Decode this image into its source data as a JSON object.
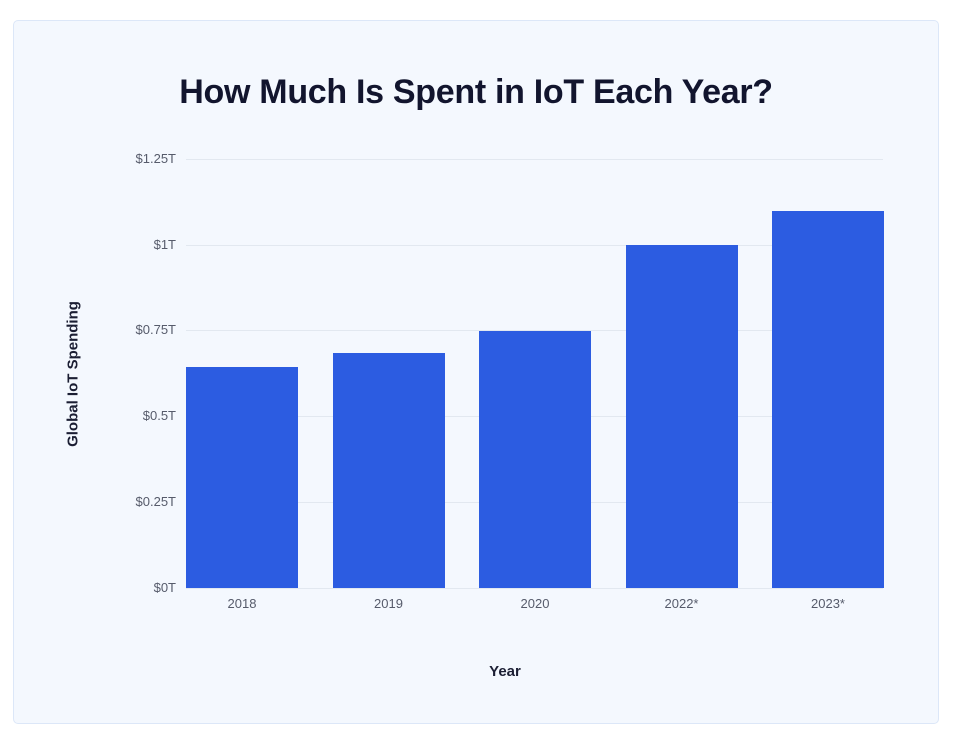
{
  "chart_data": {
    "type": "bar",
    "title": "How Much Is Spent in IoT Each Year?",
    "xlabel": "Year",
    "ylabel": "Global IoT Spending",
    "categories": [
      "2018",
      "2019",
      "2020",
      "2022*",
      "2023*"
    ],
    "values": [
      0.646,
      0.686,
      0.749,
      1.0,
      1.1
    ],
    "unit": "trillion USD",
    "ylim": [
      0,
      1.25
    ],
    "yticks": [
      0,
      0.25,
      0.5,
      0.75,
      1.0,
      1.25
    ],
    "ytick_labels": [
      "$0T",
      "$0.25T",
      "$0.5T",
      "$0.75T",
      "$1T",
      "$1.25T"
    ],
    "grid": true,
    "legend": null,
    "bar_color": "#2c5ce1"
  },
  "chart": {
    "title": "How Much Is Spent in IoT Each Year?",
    "xlabel": "Year",
    "ylabel": "Global IoT Spending",
    "yticks": [
      "$0T",
      "$0.25T",
      "$0.5T",
      "$0.75T",
      "$1T",
      "$1.25T"
    ],
    "xticks": [
      "2018",
      "2019",
      "2020",
      "2022*",
      "2023*"
    ]
  },
  "colors": {
    "bar": "#2c5ce1",
    "card_background": "#f4f8fe",
    "title": "#12152e",
    "tick_text": "#565b6b",
    "gridline": "#e2e8f0"
  }
}
